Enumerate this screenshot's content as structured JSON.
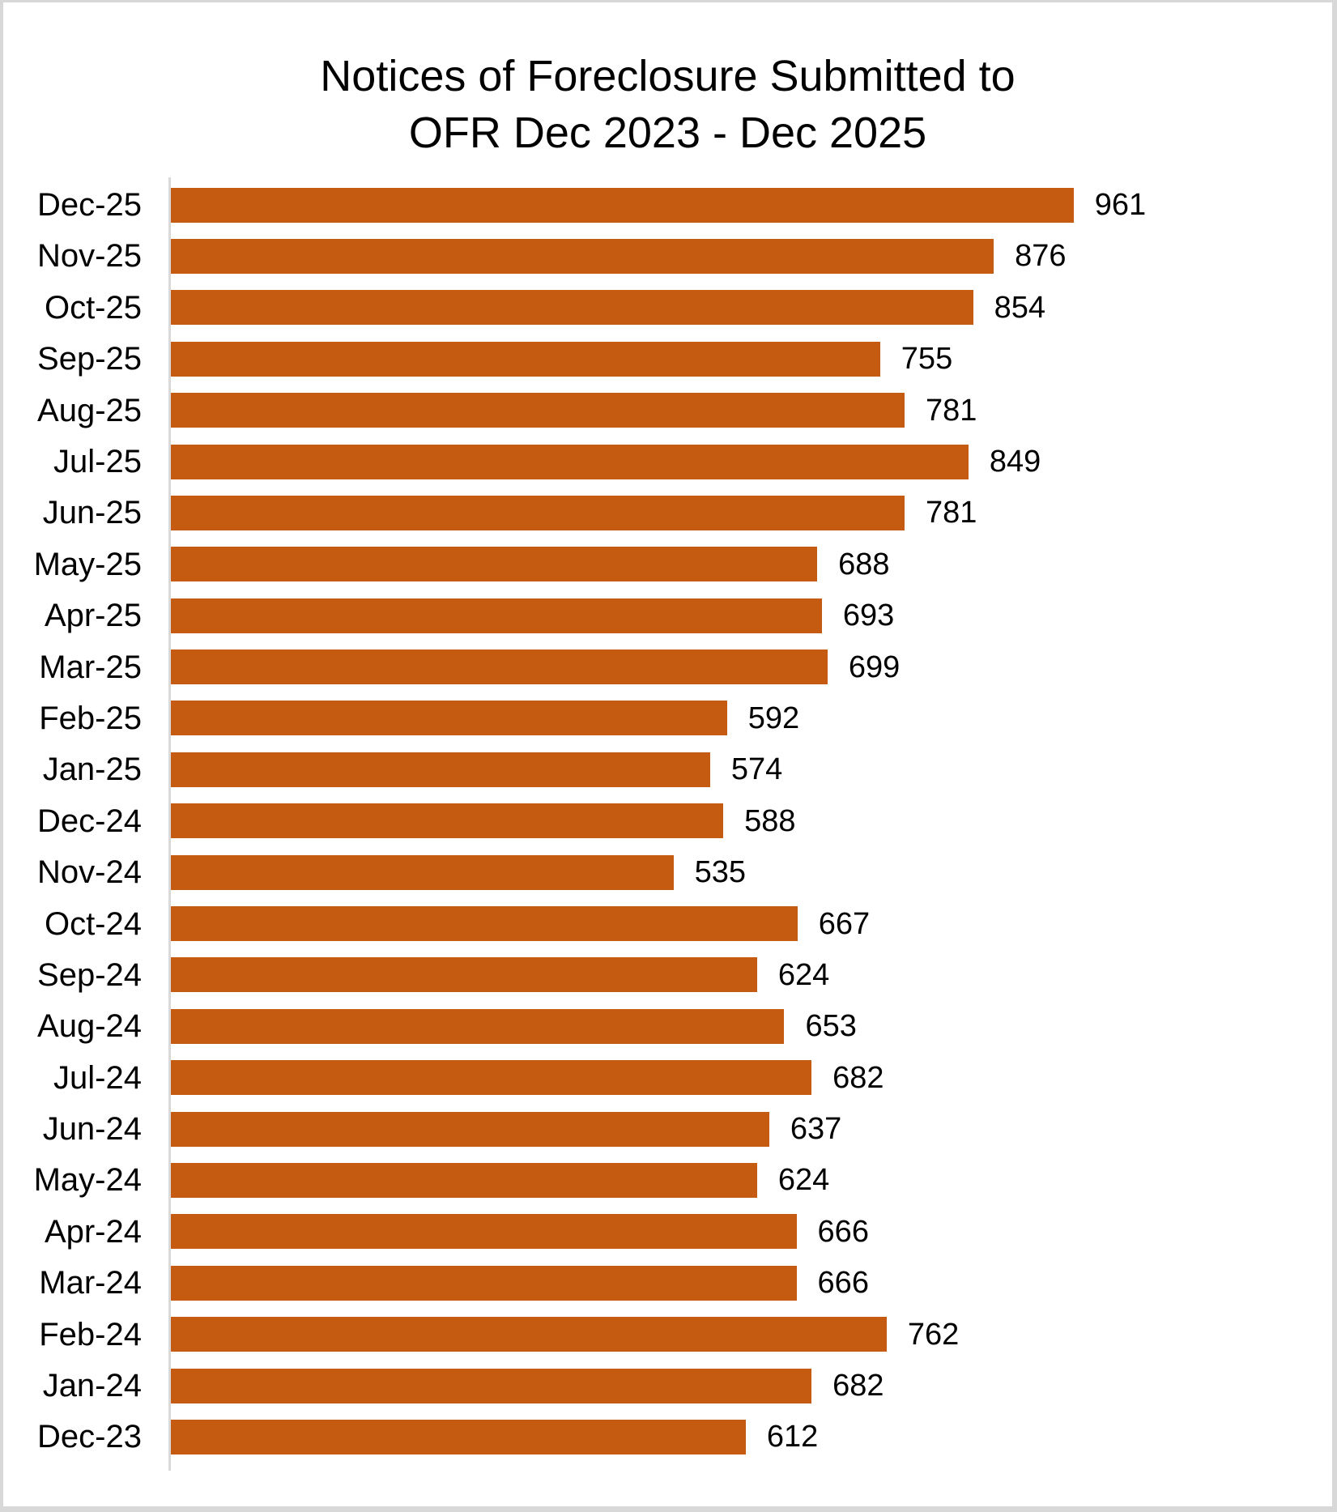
{
  "chart_data": {
    "type": "bar",
    "orientation": "horizontal",
    "title": "Notices of Foreclosure Submitted to OFR Dec 2023 - Dec 2025",
    "title_lines": [
      "Notices of Foreclosure Submitted to",
      "OFR Dec 2023 - Dec 2025"
    ],
    "categories": [
      "Dec-25",
      "Nov-25",
      "Oct-25",
      "Sep-25",
      "Aug-25",
      "Jul-25",
      "Jun-25",
      "May-25",
      "Apr-25",
      "Mar-25",
      "Feb-25",
      "Jan-25",
      "Dec-24",
      "Nov-24",
      "Oct-24",
      "Sep-24",
      "Aug-24",
      "Jul-24",
      "Jun-24",
      "May-24",
      "Apr-24",
      "Mar-24",
      "Feb-24",
      "Jan-24",
      "Dec-23"
    ],
    "values": [
      961,
      876,
      854,
      755,
      781,
      849,
      781,
      688,
      693,
      699,
      592,
      574,
      588,
      535,
      667,
      624,
      653,
      682,
      637,
      624,
      666,
      666,
      762,
      682,
      612
    ],
    "xlabel": "",
    "ylabel": "",
    "value_axis_visible": false,
    "gridlines": "none",
    "data_labels_position": "outside-end",
    "category_order_top_to_bottom": true,
    "colors": {
      "bar": "#c55a11",
      "axis_line": "#d9d9d9",
      "text": "#000000",
      "frame_border": "#d8d8d8",
      "background": "#ffffff"
    }
  }
}
